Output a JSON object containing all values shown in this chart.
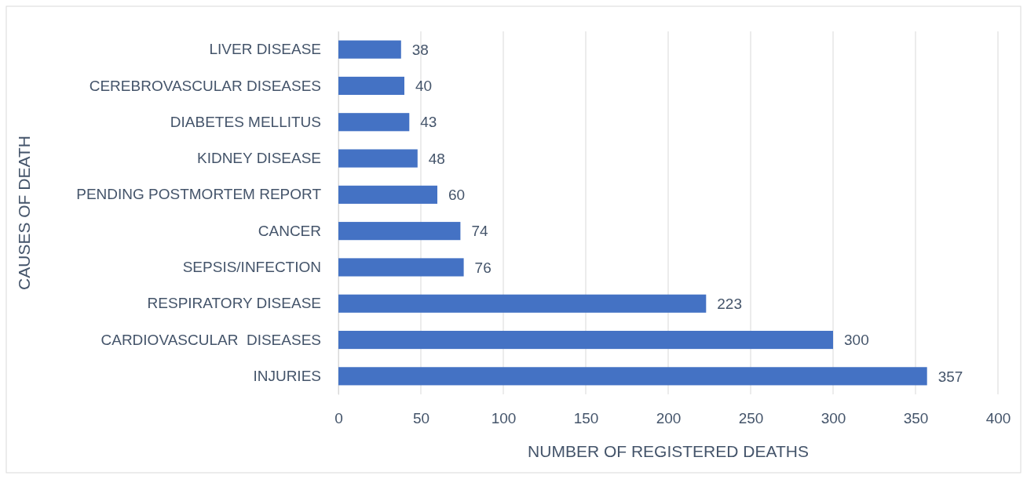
{
  "chart_data": {
    "type": "bar",
    "orientation": "horizontal",
    "xlabel": "NUMBER OF REGISTERED DEATHS",
    "ylabel": "CAUSES OF DEATH",
    "categories": [
      "LIVER DISEASE",
      "CEREBROVASCULAR DISEASES",
      "DIABETES MELLITUS",
      "KIDNEY DISEASE",
      "PENDING POSTMORTEM REPORT",
      "CANCER",
      "SEPSIS/INFECTION",
      "RESPIRATORY DISEASE",
      "CARDIOVASCULAR  DISEASES",
      "INJURIES"
    ],
    "values": [
      38,
      40,
      43,
      48,
      60,
      74,
      76,
      223,
      300,
      357
    ],
    "color": "#4472c4",
    "xlim": [
      0,
      400
    ],
    "xticks": [
      0,
      50,
      100,
      150,
      200,
      250,
      300,
      350,
      400
    ],
    "grid": "x",
    "data_labels": true
  }
}
